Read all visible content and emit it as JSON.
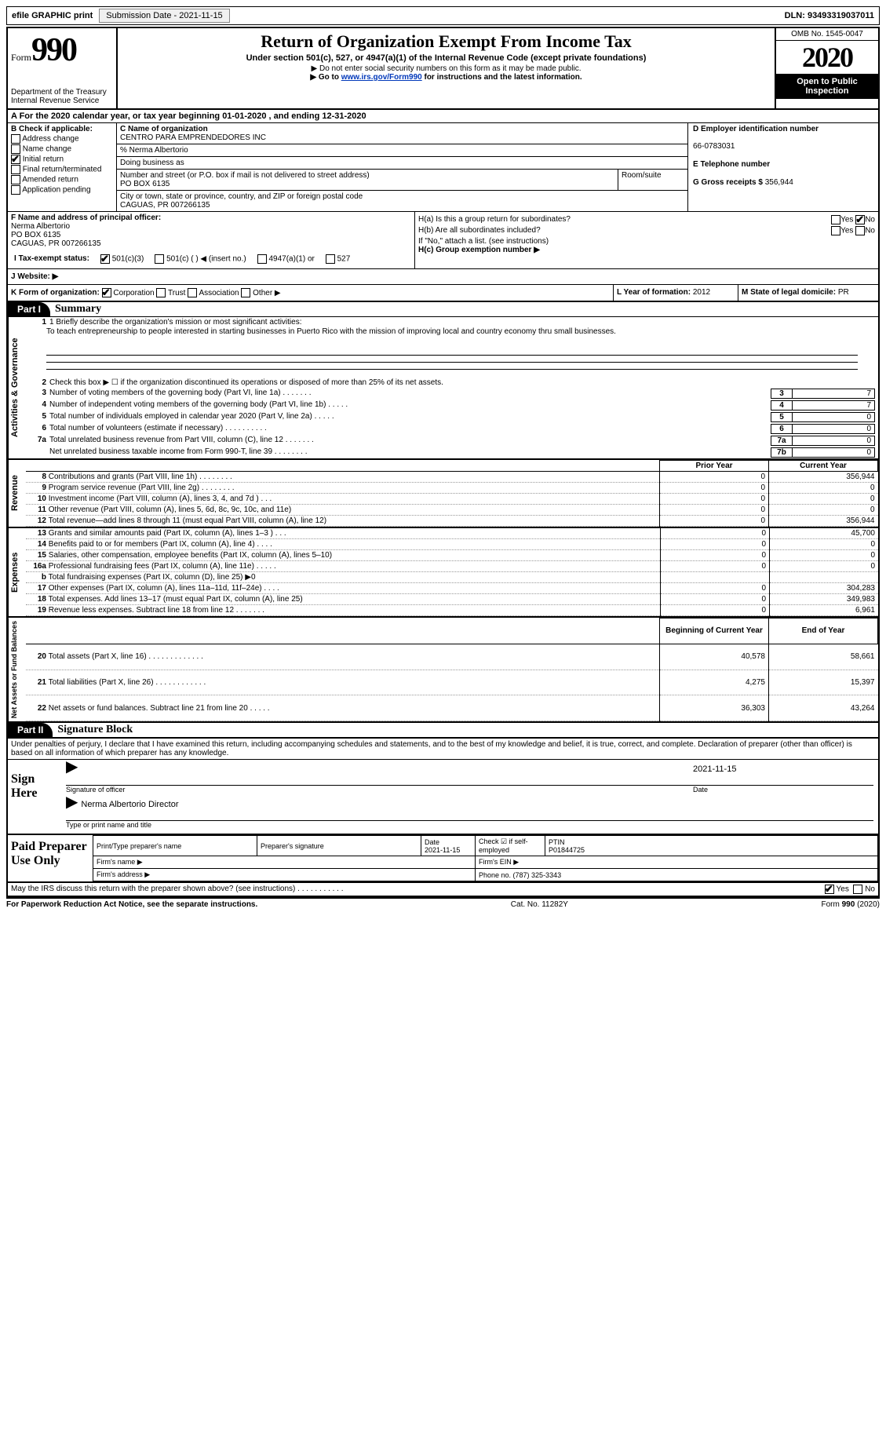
{
  "top": {
    "efile": "efile GRAPHIC print",
    "sub_label": "Submission Date - 2021-11-15",
    "dln": "DLN: 93493319037011"
  },
  "header": {
    "form_word": "Form",
    "form_num": "990",
    "dept1": "Department of the Treasury",
    "dept2": "Internal Revenue Service",
    "title": "Return of Organization Exempt From Income Tax",
    "sub": "Under section 501(c), 527, or 4947(a)(1) of the Internal Revenue Code (except private foundations)",
    "note1": "▶ Do not enter social security numbers on this form as it may be made public.",
    "note2_pre": "▶ Go to ",
    "note2_link": "www.irs.gov/Form990",
    "note2_post": " for instructions and the latest information.",
    "omb": "OMB No. 1545-0047",
    "year": "2020",
    "inspect": "Open to Public Inspection"
  },
  "a_line": "A For the 2020 calendar year, or tax year beginning 01-01-2020   , and ending 12-31-2020",
  "b": {
    "hdr": "B Check if applicable:",
    "items": [
      "Address change",
      "Name change",
      "Initial return",
      "Final return/terminated",
      "Amended return",
      "Application pending"
    ],
    "checked_idx": 2
  },
  "c": {
    "label": "C Name of organization",
    "name": "CENTRO PARA EMPRENDEDORES INC",
    "care": "% Nerma Albertorio",
    "dba_l": "Doing business as",
    "addr_l": "Number and street (or P.O. box if mail is not delivered to street address)",
    "room_l": "Room/suite",
    "addr": "PO BOX 6135",
    "city_l": "City or town, state or province, country, and ZIP or foreign postal code",
    "city": "CAGUAS, PR  007266135"
  },
  "d": {
    "label": "D Employer identification number",
    "val": "66-0783031"
  },
  "e": {
    "label": "E Telephone number"
  },
  "g": {
    "label": "G Gross receipts $",
    "val": "356,944"
  },
  "f": {
    "label": "F  Name and address of principal officer:",
    "l1": "Nerma Albertorio",
    "l2": "PO BOX 6135",
    "l3": "CAGUAS, PR  007266135"
  },
  "h": {
    "a": "H(a)  Is this a group return for subordinates?",
    "b": "H(b)  Are all subordinates included?",
    "note": "If \"No,\" attach a list. (see instructions)",
    "c": "H(c)  Group exemption number ▶",
    "yes": "Yes",
    "no": "No"
  },
  "i": {
    "label": "I  Tax-exempt status:",
    "o1": "501(c)(3)",
    "o2": "501(c) (  ) ◀ (insert no.)",
    "o3": "4947(a)(1) or",
    "o4": "527"
  },
  "j": {
    "label": "J  Website: ▶"
  },
  "k": {
    "label": "K Form of organization:",
    "o1": "Corporation",
    "o2": "Trust",
    "o3": "Association",
    "o4": "Other ▶"
  },
  "l": {
    "label": "L Year of formation:",
    "val": "2012"
  },
  "m": {
    "label": "M State of legal domicile:",
    "val": "PR"
  },
  "part1": {
    "tab": "Part I",
    "title": "Summary"
  },
  "gov": {
    "label": "Activities & Governance",
    "l1": "1   Briefly describe the organization's mission or most significant activities:",
    "mission": "To teach entrepreneurship to people interested in starting businesses in Puerto Rico with the mission of improving local and country economy thru small businesses.",
    "l2": "Check this box ▶ ☐  if the organization discontinued its operations or disposed of more than 25% of its net assets.",
    "rows": [
      {
        "n": "3",
        "t": "Number of voting members of the governing body (Part VI, line 1a)   .   .   .   .   .   .   .",
        "bn": "3",
        "v": "7"
      },
      {
        "n": "4",
        "t": "Number of independent voting members of the governing body (Part VI, line 1b)   .   .   .   .   .",
        "bn": "4",
        "v": "7"
      },
      {
        "n": "5",
        "t": "Total number of individuals employed in calendar year 2020 (Part V, line 2a)   .   .   .   .   .",
        "bn": "5",
        "v": "0"
      },
      {
        "n": "6",
        "t": "Total number of volunteers (estimate if necessary)   .   .   .   .   .   .   .   .   .   .",
        "bn": "6",
        "v": "0"
      },
      {
        "n": "7a",
        "t": "Total unrelated business revenue from Part VIII, column (C), line 12   .   .   .   .   .   .   .",
        "bn": "7a",
        "v": "0"
      },
      {
        "n": "",
        "t": "Net unrelated business taxable income from Form 990-T, line 39   .   .   .   .   .   .   .   .",
        "bn": "7b",
        "v": "0"
      }
    ]
  },
  "fin": {
    "prior": "Prior Year",
    "curr": "Current Year",
    "rev_label": "Revenue",
    "rev": [
      {
        "n": "8",
        "t": "Contributions and grants (Part VIII, line 1h)   .   .   .   .   .   .   .   .",
        "p": "0",
        "c": "356,944"
      },
      {
        "n": "9",
        "t": "Program service revenue (Part VIII, line 2g)   .   .   .   .   .   .   .   .",
        "p": "0",
        "c": "0"
      },
      {
        "n": "10",
        "t": "Investment income (Part VIII, column (A), lines 3, 4, and 7d )   .   .   .",
        "p": "0",
        "c": "0"
      },
      {
        "n": "11",
        "t": "Other revenue (Part VIII, column (A), lines 5, 6d, 8c, 9c, 10c, and 11e)",
        "p": "0",
        "c": "0"
      },
      {
        "n": "12",
        "t": "Total revenue—add lines 8 through 11 (must equal Part VIII, column (A), line 12)",
        "p": "0",
        "c": "356,944"
      }
    ],
    "exp_label": "Expenses",
    "exp": [
      {
        "n": "13",
        "t": "Grants and similar amounts paid (Part IX, column (A), lines 1–3 )   .   .   .",
        "p": "0",
        "c": "45,700"
      },
      {
        "n": "14",
        "t": "Benefits paid to or for members (Part IX, column (A), line 4)   .   .   .   .",
        "p": "0",
        "c": "0"
      },
      {
        "n": "15",
        "t": "Salaries, other compensation, employee benefits (Part IX, column (A), lines 5–10)",
        "p": "0",
        "c": "0"
      },
      {
        "n": "16a",
        "t": "Professional fundraising fees (Part IX, column (A), line 11e)   .   .   .   .   .",
        "p": "0",
        "c": "0"
      },
      {
        "n": "b",
        "t": "Total fundraising expenses (Part IX, column (D), line 25) ▶0",
        "p": "",
        "c": "",
        "shaded": true
      },
      {
        "n": "17",
        "t": "Other expenses (Part IX, column (A), lines 11a–11d, 11f–24e)   .   .   .   .",
        "p": "0",
        "c": "304,283"
      },
      {
        "n": "18",
        "t": "Total expenses. Add lines 13–17 (must equal Part IX, column (A), line 25)",
        "p": "0",
        "c": "349,983"
      },
      {
        "n": "19",
        "t": "Revenue less expenses. Subtract line 18 from line 12   .   .   .   .   .   .   .",
        "p": "0",
        "c": "6,961"
      }
    ],
    "net_label": "Net Assets or Fund Balances",
    "net_h1": "Beginning of Current Year",
    "net_h2": "End of Year",
    "net": [
      {
        "n": "20",
        "t": "Total assets (Part X, line 16)   .   .   .   .   .   .   .   .   .   .   .   .   .",
        "p": "40,578",
        "c": "58,661"
      },
      {
        "n": "21",
        "t": "Total liabilities (Part X, line 26)   .   .   .   .   .   .   .   .   .   .   .   .",
        "p": "4,275",
        "c": "15,397"
      },
      {
        "n": "22",
        "t": "Net assets or fund balances. Subtract line 21 from line 20   .   .   .   .   .",
        "p": "36,303",
        "c": "43,264"
      }
    ]
  },
  "part2": {
    "tab": "Part II",
    "title": "Signature Block"
  },
  "sig": {
    "decl": "Under penalties of perjury, I declare that I have examined this return, including accompanying schedules and statements, and to the best of my knowledge and belief, it is true, correct, and complete. Declaration of preparer (other than officer) is based on all information of which preparer has any knowledge.",
    "sign_here": "Sign Here",
    "date": "2021-11-15",
    "sig_of": "Signature of officer",
    "date_l": "Date",
    "name": "Nerma Albertorio  Director",
    "type_l": "Type or print name and title"
  },
  "prep": {
    "label": "Paid Preparer Use Only",
    "h1": "Print/Type preparer's name",
    "h2": "Preparer's signature",
    "h3": "Date",
    "h3v": "2021-11-15",
    "h4": "Check ☑ if self-employed",
    "h5": "PTIN",
    "h5v": "P01844725",
    "firm": "Firm's name    ▶",
    "ein": "Firm's EIN ▶",
    "addr": "Firm's address ▶",
    "phone": "Phone no. (787) 325-3343",
    "discuss": "May the IRS discuss this return with the preparer shown above? (see instructions)   .   .   .   .   .   .   .   .   .   .   .",
    "yes": "Yes",
    "no": "No"
  },
  "footer": {
    "pra": "For Paperwork Reduction Act Notice, see the separate instructions.",
    "cat": "Cat. No. 11282Y",
    "form": "Form 990 (2020)"
  }
}
